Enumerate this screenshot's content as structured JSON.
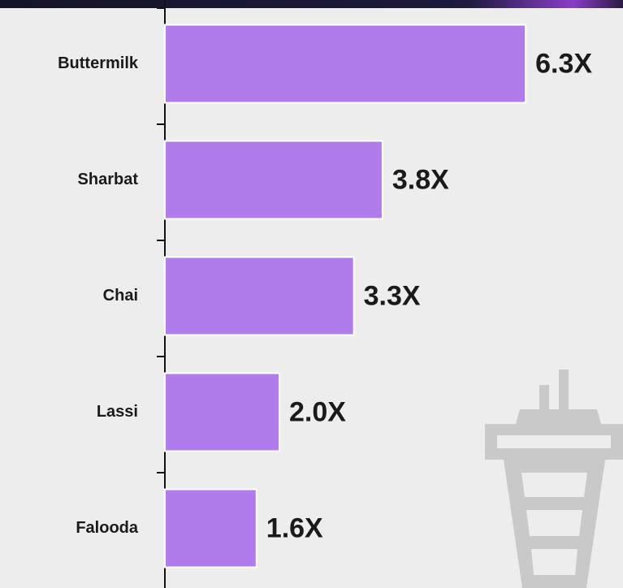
{
  "chart_data": {
    "type": "bar",
    "orientation": "horizontal",
    "categories": [
      "Buttermilk",
      "Sharbat",
      "Chai",
      "Lassi",
      "Falooda"
    ],
    "values": [
      6.3,
      3.8,
      3.3,
      2.0,
      1.6
    ],
    "value_labels": [
      "6.3X",
      "3.8X",
      "3.3X",
      "2.0X",
      "1.6X"
    ],
    "color": "#b07cec",
    "xlim": [
      0,
      8
    ]
  }
}
